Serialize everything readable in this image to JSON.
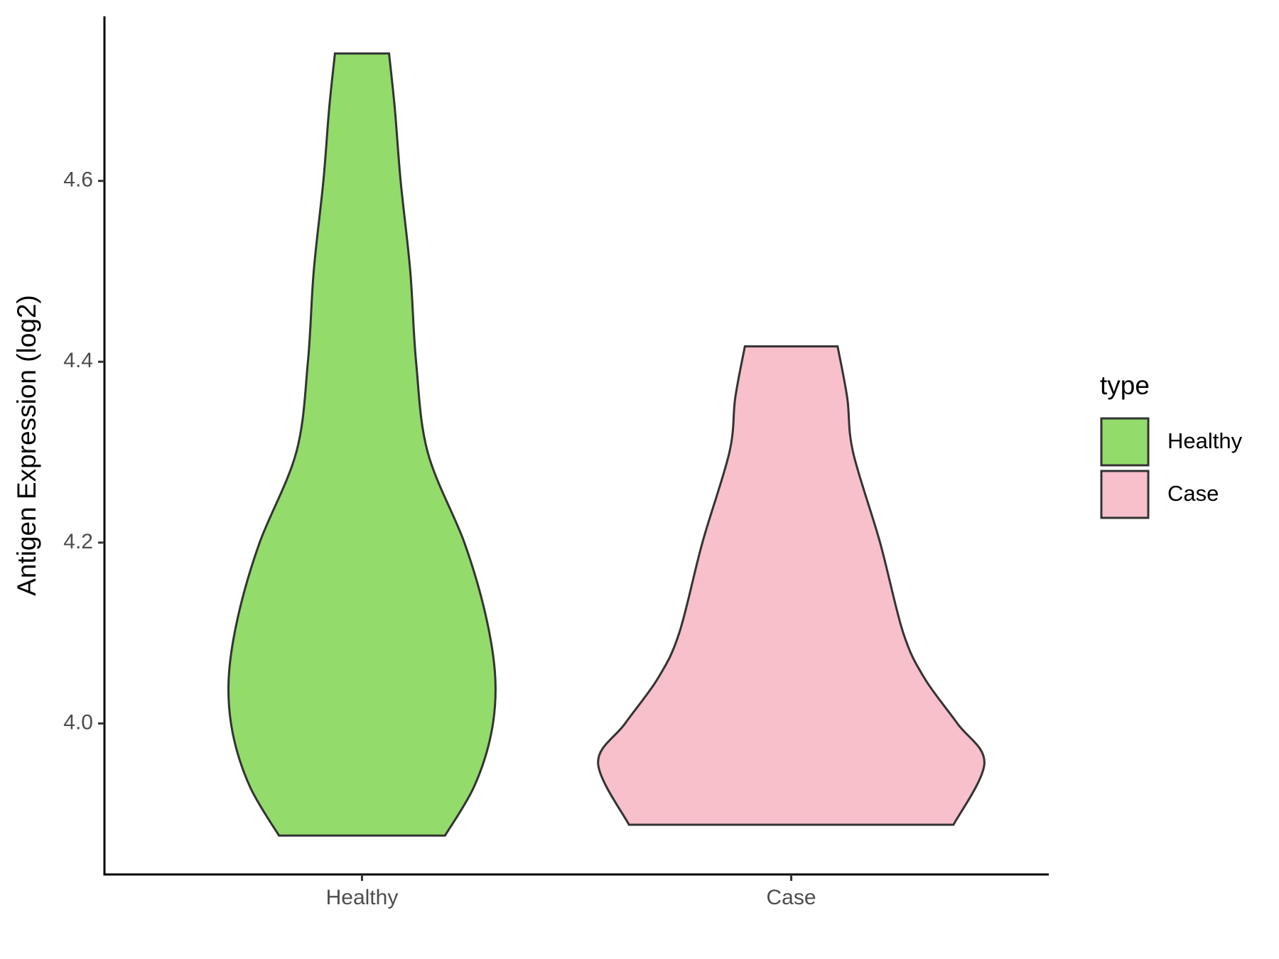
{
  "chart_data": {
    "type": "violin",
    "y_label": "Antigen Expression (log2)",
    "categories": [
      "Healthy",
      "Case"
    ],
    "series": [
      {
        "name": "Healthy",
        "color": "#93DB6B",
        "y": [
          3.876,
          3.93,
          3.99,
          4.05,
          4.12,
          4.2,
          4.3,
          4.4,
          4.5,
          4.6,
          4.68,
          4.741
        ],
        "density": [
          0.43,
          0.58,
          0.67,
          0.69,
          0.64,
          0.53,
          0.34,
          0.28,
          0.25,
          0.2,
          0.17,
          0.14
        ]
      },
      {
        "name": "Case",
        "color": "#F7C0CB",
        "y": [
          3.888,
          3.956,
          4.0,
          4.05,
          4.1,
          4.2,
          4.3,
          4.36,
          4.417
        ],
        "density": [
          0.84,
          1.0,
          0.86,
          0.69,
          0.58,
          0.46,
          0.32,
          0.29,
          0.24
        ]
      }
    ],
    "ylim": [
      3.833,
      4.782
    ],
    "yticks": [
      {
        "value": 4,
        "label": "4.0"
      },
      4.2,
      4.4,
      4.6
    ],
    "legend_title": "type",
    "legend": "right"
  }
}
